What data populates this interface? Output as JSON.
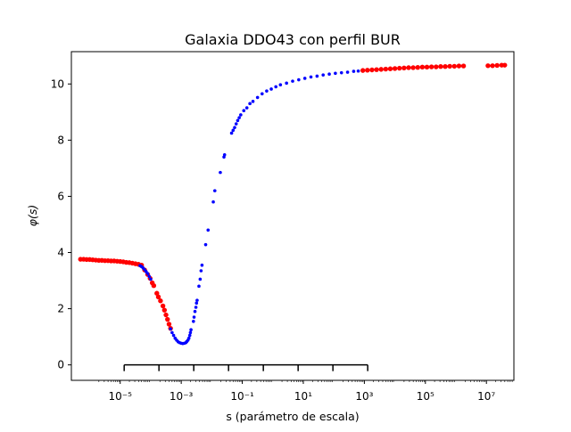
{
  "chart_data": {
    "type": "scatter",
    "title": "Galaxia DDO43 con perfil BUR",
    "xlabel": "s (parámetro de escala)",
    "ylabel": "φ(s)",
    "xscale": "log",
    "xlim_exponent": [
      -6.6,
      7.9
    ],
    "ylim": [
      -0.55,
      11.15
    ],
    "grid": false,
    "legend": "none",
    "x_ticks": [
      {
        "exp": -5,
        "label": "10⁻⁵"
      },
      {
        "exp": -3,
        "label": "10⁻³"
      },
      {
        "exp": -1,
        "label": "10⁻¹"
      },
      {
        "exp": 1,
        "label": "10¹"
      },
      {
        "exp": 3,
        "label": "10³"
      },
      {
        "exp": 5,
        "label": "10⁵"
      },
      {
        "exp": 7,
        "label": "10⁷"
      }
    ],
    "y_ticks": [
      {
        "value": 0,
        "label": "0"
      },
      {
        "value": 2,
        "label": "2"
      },
      {
        "value": 4,
        "label": "4"
      },
      {
        "value": 6,
        "label": "6"
      },
      {
        "value": 8,
        "label": "8"
      },
      {
        "value": 10,
        "label": "10"
      }
    ],
    "series": [
      {
        "color": "#ff0000",
        "marker_size": "large",
        "points": [
          [
            -6.3,
            3.76
          ],
          [
            -6.2,
            3.76
          ],
          [
            -6.1,
            3.75
          ],
          [
            -6.0,
            3.75
          ],
          [
            -5.9,
            3.74
          ],
          [
            -5.8,
            3.73
          ],
          [
            -5.7,
            3.72
          ],
          [
            -5.6,
            3.72
          ],
          [
            -5.5,
            3.71
          ],
          [
            -5.4,
            3.71
          ],
          [
            -5.3,
            3.7
          ],
          [
            -5.2,
            3.7
          ],
          [
            -5.1,
            3.69
          ],
          [
            -5.0,
            3.68
          ],
          [
            -4.9,
            3.67
          ],
          [
            -4.8,
            3.65
          ],
          [
            -4.7,
            3.64
          ],
          [
            -4.6,
            3.62
          ],
          [
            -4.5,
            3.6
          ],
          [
            -4.4,
            3.58
          ],
          [
            -4.3,
            3.55
          ],
          [
            -4.2,
            3.38
          ],
          [
            -4.1,
            3.22
          ],
          [
            -4.02,
            3.08
          ],
          [
            -3.95,
            2.92
          ],
          [
            -3.9,
            2.82
          ],
          [
            -3.8,
            2.55
          ],
          [
            -3.75,
            2.42
          ],
          [
            -3.68,
            2.28
          ],
          [
            -3.6,
            2.1
          ],
          [
            -3.55,
            1.95
          ],
          [
            -3.5,
            1.78
          ],
          [
            -3.45,
            1.62
          ],
          [
            -3.4,
            1.45
          ],
          [
            -3.35,
            1.3
          ],
          [
            2.95,
            10.48
          ],
          [
            3.1,
            10.49
          ],
          [
            3.25,
            10.5
          ],
          [
            3.4,
            10.51
          ],
          [
            3.55,
            10.52
          ],
          [
            3.7,
            10.53
          ],
          [
            3.85,
            10.54
          ],
          [
            4.0,
            10.55
          ],
          [
            4.15,
            10.56
          ],
          [
            4.3,
            10.57
          ],
          [
            4.45,
            10.58
          ],
          [
            4.6,
            10.58
          ],
          [
            4.75,
            10.59
          ],
          [
            4.9,
            10.6
          ],
          [
            5.05,
            10.6
          ],
          [
            5.2,
            10.61
          ],
          [
            5.35,
            10.61
          ],
          [
            5.5,
            10.62
          ],
          [
            5.65,
            10.62
          ],
          [
            5.8,
            10.63
          ],
          [
            5.95,
            10.63
          ],
          [
            6.1,
            10.64
          ],
          [
            6.25,
            10.64
          ],
          [
            7.05,
            10.65
          ],
          [
            7.2,
            10.65
          ],
          [
            7.35,
            10.66
          ],
          [
            7.5,
            10.67
          ],
          [
            7.6,
            10.67
          ]
        ]
      },
      {
        "color": "#0000ff",
        "marker_size": "small",
        "points": [
          [
            -4.35,
            3.53
          ],
          [
            -4.3,
            3.5
          ],
          [
            -4.25,
            3.45
          ],
          [
            -4.2,
            3.39
          ],
          [
            -4.15,
            3.32
          ],
          [
            -4.1,
            3.25
          ],
          [
            -4.05,
            3.15
          ],
          [
            -4.0,
            3.05
          ],
          [
            -3.35,
            1.28
          ],
          [
            -3.3,
            1.15
          ],
          [
            -3.25,
            1.05
          ],
          [
            -3.2,
            0.95
          ],
          [
            -3.15,
            0.88
          ],
          [
            -3.1,
            0.82
          ],
          [
            -3.05,
            0.79
          ],
          [
            -3.0,
            0.77
          ],
          [
            -2.95,
            0.76
          ],
          [
            -2.9,
            0.77
          ],
          [
            -2.85,
            0.79
          ],
          [
            -2.82,
            0.83
          ],
          [
            -2.78,
            0.88
          ],
          [
            -2.75,
            0.95
          ],
          [
            -2.72,
            1.05
          ],
          [
            -2.7,
            1.15
          ],
          [
            -2.68,
            1.25
          ],
          [
            -2.6,
            1.55
          ],
          [
            -2.58,
            1.7
          ],
          [
            -2.55,
            1.9
          ],
          [
            -2.52,
            2.05
          ],
          [
            -2.5,
            2.2
          ],
          [
            -2.48,
            2.3
          ],
          [
            -2.42,
            2.8
          ],
          [
            -2.38,
            3.05
          ],
          [
            -2.35,
            3.35
          ],
          [
            -2.32,
            3.55
          ],
          [
            -2.2,
            4.28
          ],
          [
            -2.12,
            4.8
          ],
          [
            -1.95,
            5.8
          ],
          [
            -1.9,
            6.2
          ],
          [
            -1.72,
            6.85
          ],
          [
            -1.6,
            7.4
          ],
          [
            -1.58,
            7.48
          ],
          [
            -1.35,
            8.25
          ],
          [
            -1.3,
            8.35
          ],
          [
            -1.25,
            8.45
          ],
          [
            -1.2,
            8.58
          ],
          [
            -1.15,
            8.7
          ],
          [
            -1.1,
            8.8
          ],
          [
            -1.05,
            8.9
          ],
          [
            -0.95,
            9.05
          ],
          [
            -0.85,
            9.15
          ],
          [
            -0.75,
            9.3
          ],
          [
            -0.65,
            9.38
          ],
          [
            -0.5,
            9.52
          ],
          [
            -0.35,
            9.65
          ],
          [
            -0.2,
            9.75
          ],
          [
            -0.05,
            9.82
          ],
          [
            0.1,
            9.9
          ],
          [
            0.25,
            9.97
          ],
          [
            0.45,
            10.03
          ],
          [
            0.65,
            10.1
          ],
          [
            0.85,
            10.15
          ],
          [
            1.05,
            10.2
          ],
          [
            1.25,
            10.25
          ],
          [
            1.45,
            10.28
          ],
          [
            1.65,
            10.32
          ],
          [
            1.85,
            10.35
          ],
          [
            2.05,
            10.38
          ],
          [
            2.25,
            10.4
          ],
          [
            2.45,
            10.42
          ],
          [
            2.65,
            10.45
          ],
          [
            2.8,
            10.46
          ]
        ]
      }
    ],
    "bracket": {
      "y": 0,
      "x_exponents": [
        -4.87,
        -3.73,
        -2.59,
        -1.45,
        -0.31,
        0.83,
        1.97,
        3.11
      ]
    }
  }
}
